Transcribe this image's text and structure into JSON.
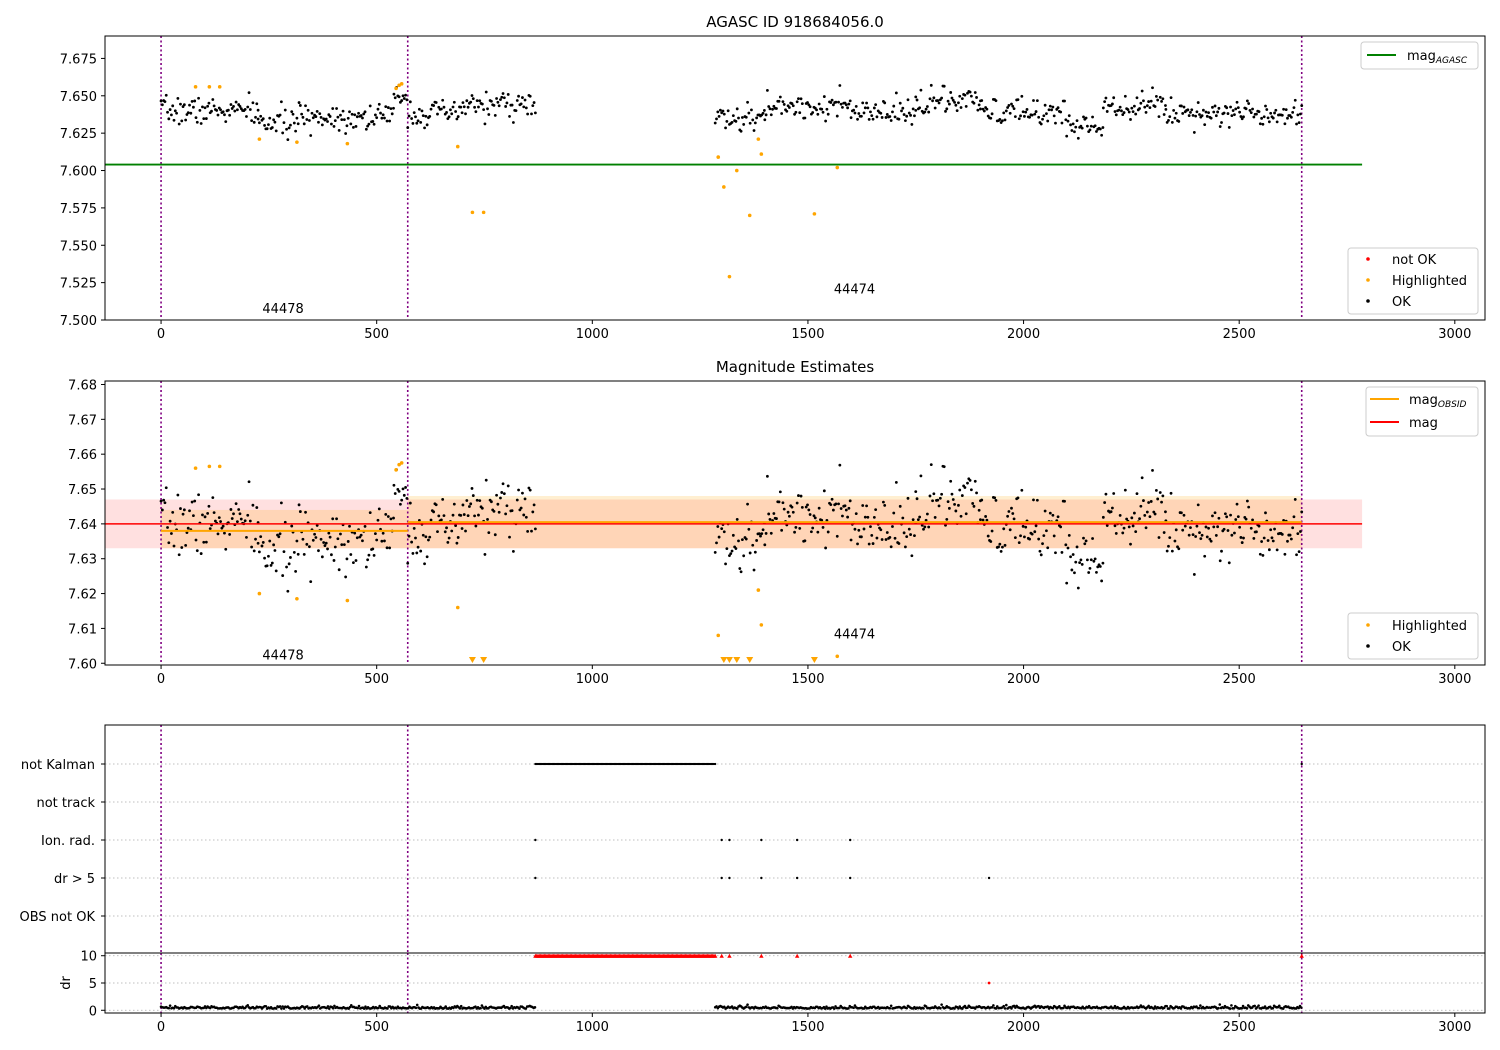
{
  "chart_data": [
    {
      "type": "scatter",
      "title": "AGASC ID 918684056.0",
      "xlim": [
        -130,
        3070
      ],
      "ylim": [
        7.5,
        7.69
      ],
      "xticks": [
        0,
        500,
        1000,
        1500,
        2000,
        2500,
        3000
      ],
      "yticks": [
        7.5,
        7.525,
        7.55,
        7.575,
        7.6,
        7.625,
        7.65,
        7.675
      ],
      "obs_boundaries": [
        0,
        572,
        2645
      ],
      "obs_labels": [
        {
          "text": "44478",
          "x": 235,
          "y": 7.508
        },
        {
          "text": "44474",
          "x": 1560,
          "y": 7.521
        }
      ],
      "ok_segments": [
        {
          "x0": 0,
          "x1": 225,
          "y": 7.64,
          "sd": 0.0045
        },
        {
          "x0": 225,
          "x1": 320,
          "y": 7.632,
          "sd": 0.0045
        },
        {
          "x0": 320,
          "x1": 540,
          "y": 7.636,
          "sd": 0.0045
        },
        {
          "x0": 540,
          "x1": 572,
          "y": 7.65,
          "sd": 0.003
        },
        {
          "x0": 572,
          "x1": 700,
          "y": 7.638,
          "sd": 0.0045
        },
        {
          "x0": 700,
          "x1": 868,
          "y": 7.644,
          "sd": 0.0045
        },
        {
          "x0": 1285,
          "x1": 1400,
          "y": 7.634,
          "sd": 0.0045
        },
        {
          "x0": 1400,
          "x1": 1600,
          "y": 7.643,
          "sd": 0.0045
        },
        {
          "x0": 1600,
          "x1": 1750,
          "y": 7.638,
          "sd": 0.0045
        },
        {
          "x0": 1750,
          "x1": 1900,
          "y": 7.646,
          "sd": 0.0045
        },
        {
          "x0": 1900,
          "x1": 2100,
          "y": 7.639,
          "sd": 0.0045
        },
        {
          "x0": 2100,
          "x1": 2185,
          "y": 7.63,
          "sd": 0.004
        },
        {
          "x0": 2185,
          "x1": 2330,
          "y": 7.644,
          "sd": 0.0045
        },
        {
          "x0": 2330,
          "x1": 2645,
          "y": 7.639,
          "sd": 0.0045
        }
      ],
      "highlighted_points": [
        {
          "x": 80,
          "y": 7.656
        },
        {
          "x": 112,
          "y": 7.656
        },
        {
          "x": 136,
          "y": 7.656
        },
        {
          "x": 228,
          "y": 7.621
        },
        {
          "x": 315,
          "y": 7.619
        },
        {
          "x": 432,
          "y": 7.618
        },
        {
          "x": 545,
          "y": 7.655
        },
        {
          "x": 552,
          "y": 7.657
        },
        {
          "x": 558,
          "y": 7.658
        },
        {
          "x": 688,
          "y": 7.616
        },
        {
          "x": 722,
          "y": 7.572
        },
        {
          "x": 748,
          "y": 7.572
        },
        {
          "x": 1292,
          "y": 7.609
        },
        {
          "x": 1305,
          "y": 7.589
        },
        {
          "x": 1318,
          "y": 7.529
        },
        {
          "x": 1335,
          "y": 7.6
        },
        {
          "x": 1365,
          "y": 7.57
        },
        {
          "x": 1385,
          "y": 7.621
        },
        {
          "x": 1392,
          "y": 7.611
        },
        {
          "x": 1515,
          "y": 7.571
        },
        {
          "x": 1568,
          "y": 7.602
        }
      ],
      "mag_agasc": 7.604,
      "mag_agasc_xrange": [
        -130,
        2785
      ],
      "legend_lines": [
        {
          "label": "mag",
          "sub": "AGASC",
          "color": "#008000"
        }
      ],
      "legend_points": [
        {
          "label": "not OK",
          "color": "#ff0000"
        },
        {
          "label": "Highlighted",
          "color": "#ffa500"
        },
        {
          "label": "OK",
          "color": "#000000"
        }
      ]
    },
    {
      "type": "scatter",
      "title": "Magnitude Estimates",
      "xlim": [
        -130,
        3070
      ],
      "ylim": [
        7.5995,
        7.681
      ],
      "xticks": [
        0,
        500,
        1000,
        1500,
        2000,
        2500,
        3000
      ],
      "yticks": [
        7.6,
        7.61,
        7.62,
        7.63,
        7.64,
        7.65,
        7.66,
        7.67,
        7.68
      ],
      "obs_boundaries": [
        0,
        572,
        2645
      ],
      "obs_labels": [
        {
          "text": "44478",
          "x": 235,
          "y": 7.6025
        },
        {
          "text": "44474",
          "x": 1560,
          "y": 7.6085
        }
      ],
      "mag": 7.64,
      "mag_band": [
        7.633,
        7.647
      ],
      "mag_xrange": [
        -130,
        2785
      ],
      "obsid_mags": [
        {
          "x0": 0,
          "x1": 572,
          "y": 7.638,
          "band": [
            7.633,
            7.644
          ]
        },
        {
          "x0": 572,
          "x1": 2645,
          "y": 7.6405,
          "band": [
            7.633,
            7.648
          ]
        }
      ],
      "highlighted_points": [
        {
          "x": 80,
          "y": 7.656
        },
        {
          "x": 112,
          "y": 7.6565
        },
        {
          "x": 136,
          "y": 7.6565
        },
        {
          "x": 228,
          "y": 7.62
        },
        {
          "x": 315,
          "y": 7.6185
        },
        {
          "x": 432,
          "y": 7.618
        },
        {
          "x": 545,
          "y": 7.6555
        },
        {
          "x": 552,
          "y": 7.657
        },
        {
          "x": 558,
          "y": 7.6575
        },
        {
          "x": 688,
          "y": 7.616
        },
        {
          "x": 1292,
          "y": 7.608
        },
        {
          "x": 1385,
          "y": 7.621
        },
        {
          "x": 1392,
          "y": 7.611
        },
        {
          "x": 1568,
          "y": 7.602
        }
      ],
      "lower_limit_markers": [
        722,
        748,
        1305,
        1318,
        1335,
        1365,
        1515
      ],
      "legend_lines": [
        {
          "label": "mag",
          "sub": "OBSID",
          "color": "#ffa500"
        },
        {
          "label": "mag",
          "sub": "",
          "color": "#ff0000"
        }
      ],
      "legend_points": [
        {
          "label": "Highlighted",
          "color": "#ffa500"
        },
        {
          "label": "OK",
          "color": "#000000"
        }
      ]
    },
    {
      "type": "scatter",
      "title": "",
      "xlim": [
        -130,
        3070
      ],
      "xticks": [
        0,
        500,
        1000,
        1500,
        2000,
        2500,
        3000
      ],
      "obs_boundaries": [
        0,
        572,
        2645
      ],
      "flag_rows": [
        "not Kalman",
        "not track",
        "Ion. rad.",
        "dr > 5",
        "OBS not OK"
      ],
      "flags": {
        "not Kalman": {
          "ranges": [
            [
              868,
              1285
            ]
          ],
          "points": [
            2645
          ]
        },
        "not track": {
          "ranges": [],
          "points": []
        },
        "Ion. rad.": {
          "ranges": [],
          "points": [
            868,
            1300,
            1318,
            1392,
            1475,
            1598
          ]
        },
        "dr > 5": {
          "ranges": [],
          "points": [
            868,
            1300,
            1318,
            1392,
            1475,
            1598,
            1920
          ]
        },
        "OBS not OK": {
          "ranges": [],
          "points": []
        }
      },
      "dr_ylabel": "dr",
      "dr_yticks": [
        0,
        5,
        10
      ],
      "dr_ylim": [
        -0.5,
        10.5
      ],
      "dr_clipped": {
        "ranges": [
          [
            868,
            1285
          ]
        ],
        "points": [
          1300,
          1318,
          1392,
          1475,
          1598,
          2645
        ],
        "y": 10
      },
      "dr_red_points": [
        {
          "x": 1920,
          "y": 5
        }
      ],
      "dr_ok_segments": [
        [
          0,
          868
        ],
        [
          1285,
          2645
        ]
      ],
      "dr_ok_level": 0.3
    }
  ]
}
